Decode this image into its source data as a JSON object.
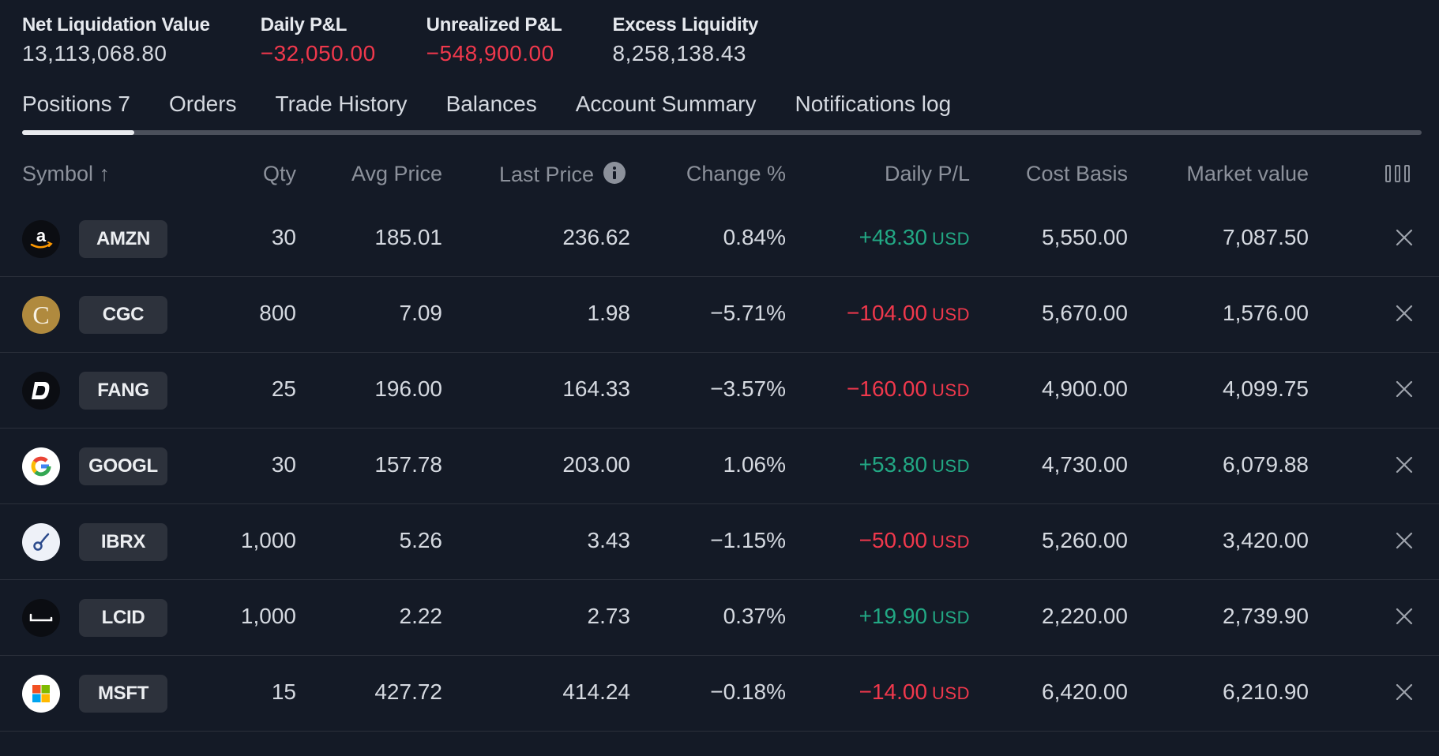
{
  "summary": {
    "net_liquidation": {
      "label": "Net Liquidation Value",
      "value": "13,113,068.80"
    },
    "daily_pnl": {
      "label": "Daily P&L",
      "value": "−32,050.00"
    },
    "unrealized_pnl": {
      "label": "Unrealized P&L",
      "value": "−548,900.00"
    },
    "excess_liquidity": {
      "label": "Excess Liquidity",
      "value": "8,258,138.43"
    }
  },
  "tabs": [
    {
      "label": "Positions 7",
      "active": true
    },
    {
      "label": "Orders"
    },
    {
      "label": "Trade History"
    },
    {
      "label": "Balances"
    },
    {
      "label": "Account Summary"
    },
    {
      "label": "Notifications log"
    }
  ],
  "table": {
    "headers": {
      "symbol": "Symbol ↑",
      "qty": "Qty",
      "avg_price": "Avg Price",
      "last_price": "Last Price",
      "change": "Change %",
      "daily_pl": "Daily P/L",
      "cost_basis": "Cost Basis",
      "market_value": "Market value"
    },
    "rows": [
      {
        "logo": "amazon-logo-icon",
        "symbol": "AMZN",
        "qty": "30",
        "avg": "185.01",
        "last": "236.62",
        "change": "0.84%",
        "daily": "+48.30",
        "ccy": "USD",
        "cost": "5,550.00",
        "mv": "7,087.50"
      },
      {
        "logo": "cgc-logo-icon",
        "symbol": "CGC",
        "qty": "800",
        "avg": "7.09",
        "last": "1.98",
        "change": "−5.71%",
        "daily": "−104.00",
        "ccy": "USD",
        "cost": "5,670.00",
        "mv": "1,576.00"
      },
      {
        "logo": "fang-logo-icon",
        "symbol": "FANG",
        "qty": "25",
        "avg": "196.00",
        "last": "164.33",
        "change": "−3.57%",
        "daily": "−160.00",
        "ccy": "USD",
        "cost": "4,900.00",
        "mv": "4,099.75"
      },
      {
        "logo": "google-logo-icon",
        "symbol": "GOOGL",
        "qty": "30",
        "avg": "157.78",
        "last": "203.00",
        "change": "1.06%",
        "daily": "+53.80",
        "ccy": "USD",
        "cost": "4,730.00",
        "mv": "6,079.88"
      },
      {
        "logo": "ibrx-logo-icon",
        "symbol": "IBRX",
        "qty": "1,000",
        "avg": "5.26",
        "last": "3.43",
        "change": "−1.15%",
        "daily": "−50.00",
        "ccy": "USD",
        "cost": "5,260.00",
        "mv": "3,420.00"
      },
      {
        "logo": "lucid-logo-icon",
        "symbol": "LCID",
        "qty": "1,000",
        "avg": "2.22",
        "last": "2.73",
        "change": "0.37%",
        "daily": "+19.90",
        "ccy": "USD",
        "cost": "2,220.00",
        "mv": "2,739.90"
      },
      {
        "logo": "microsoft-logo-icon",
        "symbol": "MSFT",
        "qty": "15",
        "avg": "427.72",
        "last": "414.24",
        "change": "−0.18%",
        "daily": "−14.00",
        "ccy": "USD",
        "cost": "6,420.00",
        "mv": "6,210.90"
      }
    ]
  },
  "colors": {
    "background": "#141a26",
    "positive": "#22a884",
    "negative": "#f0384c"
  }
}
